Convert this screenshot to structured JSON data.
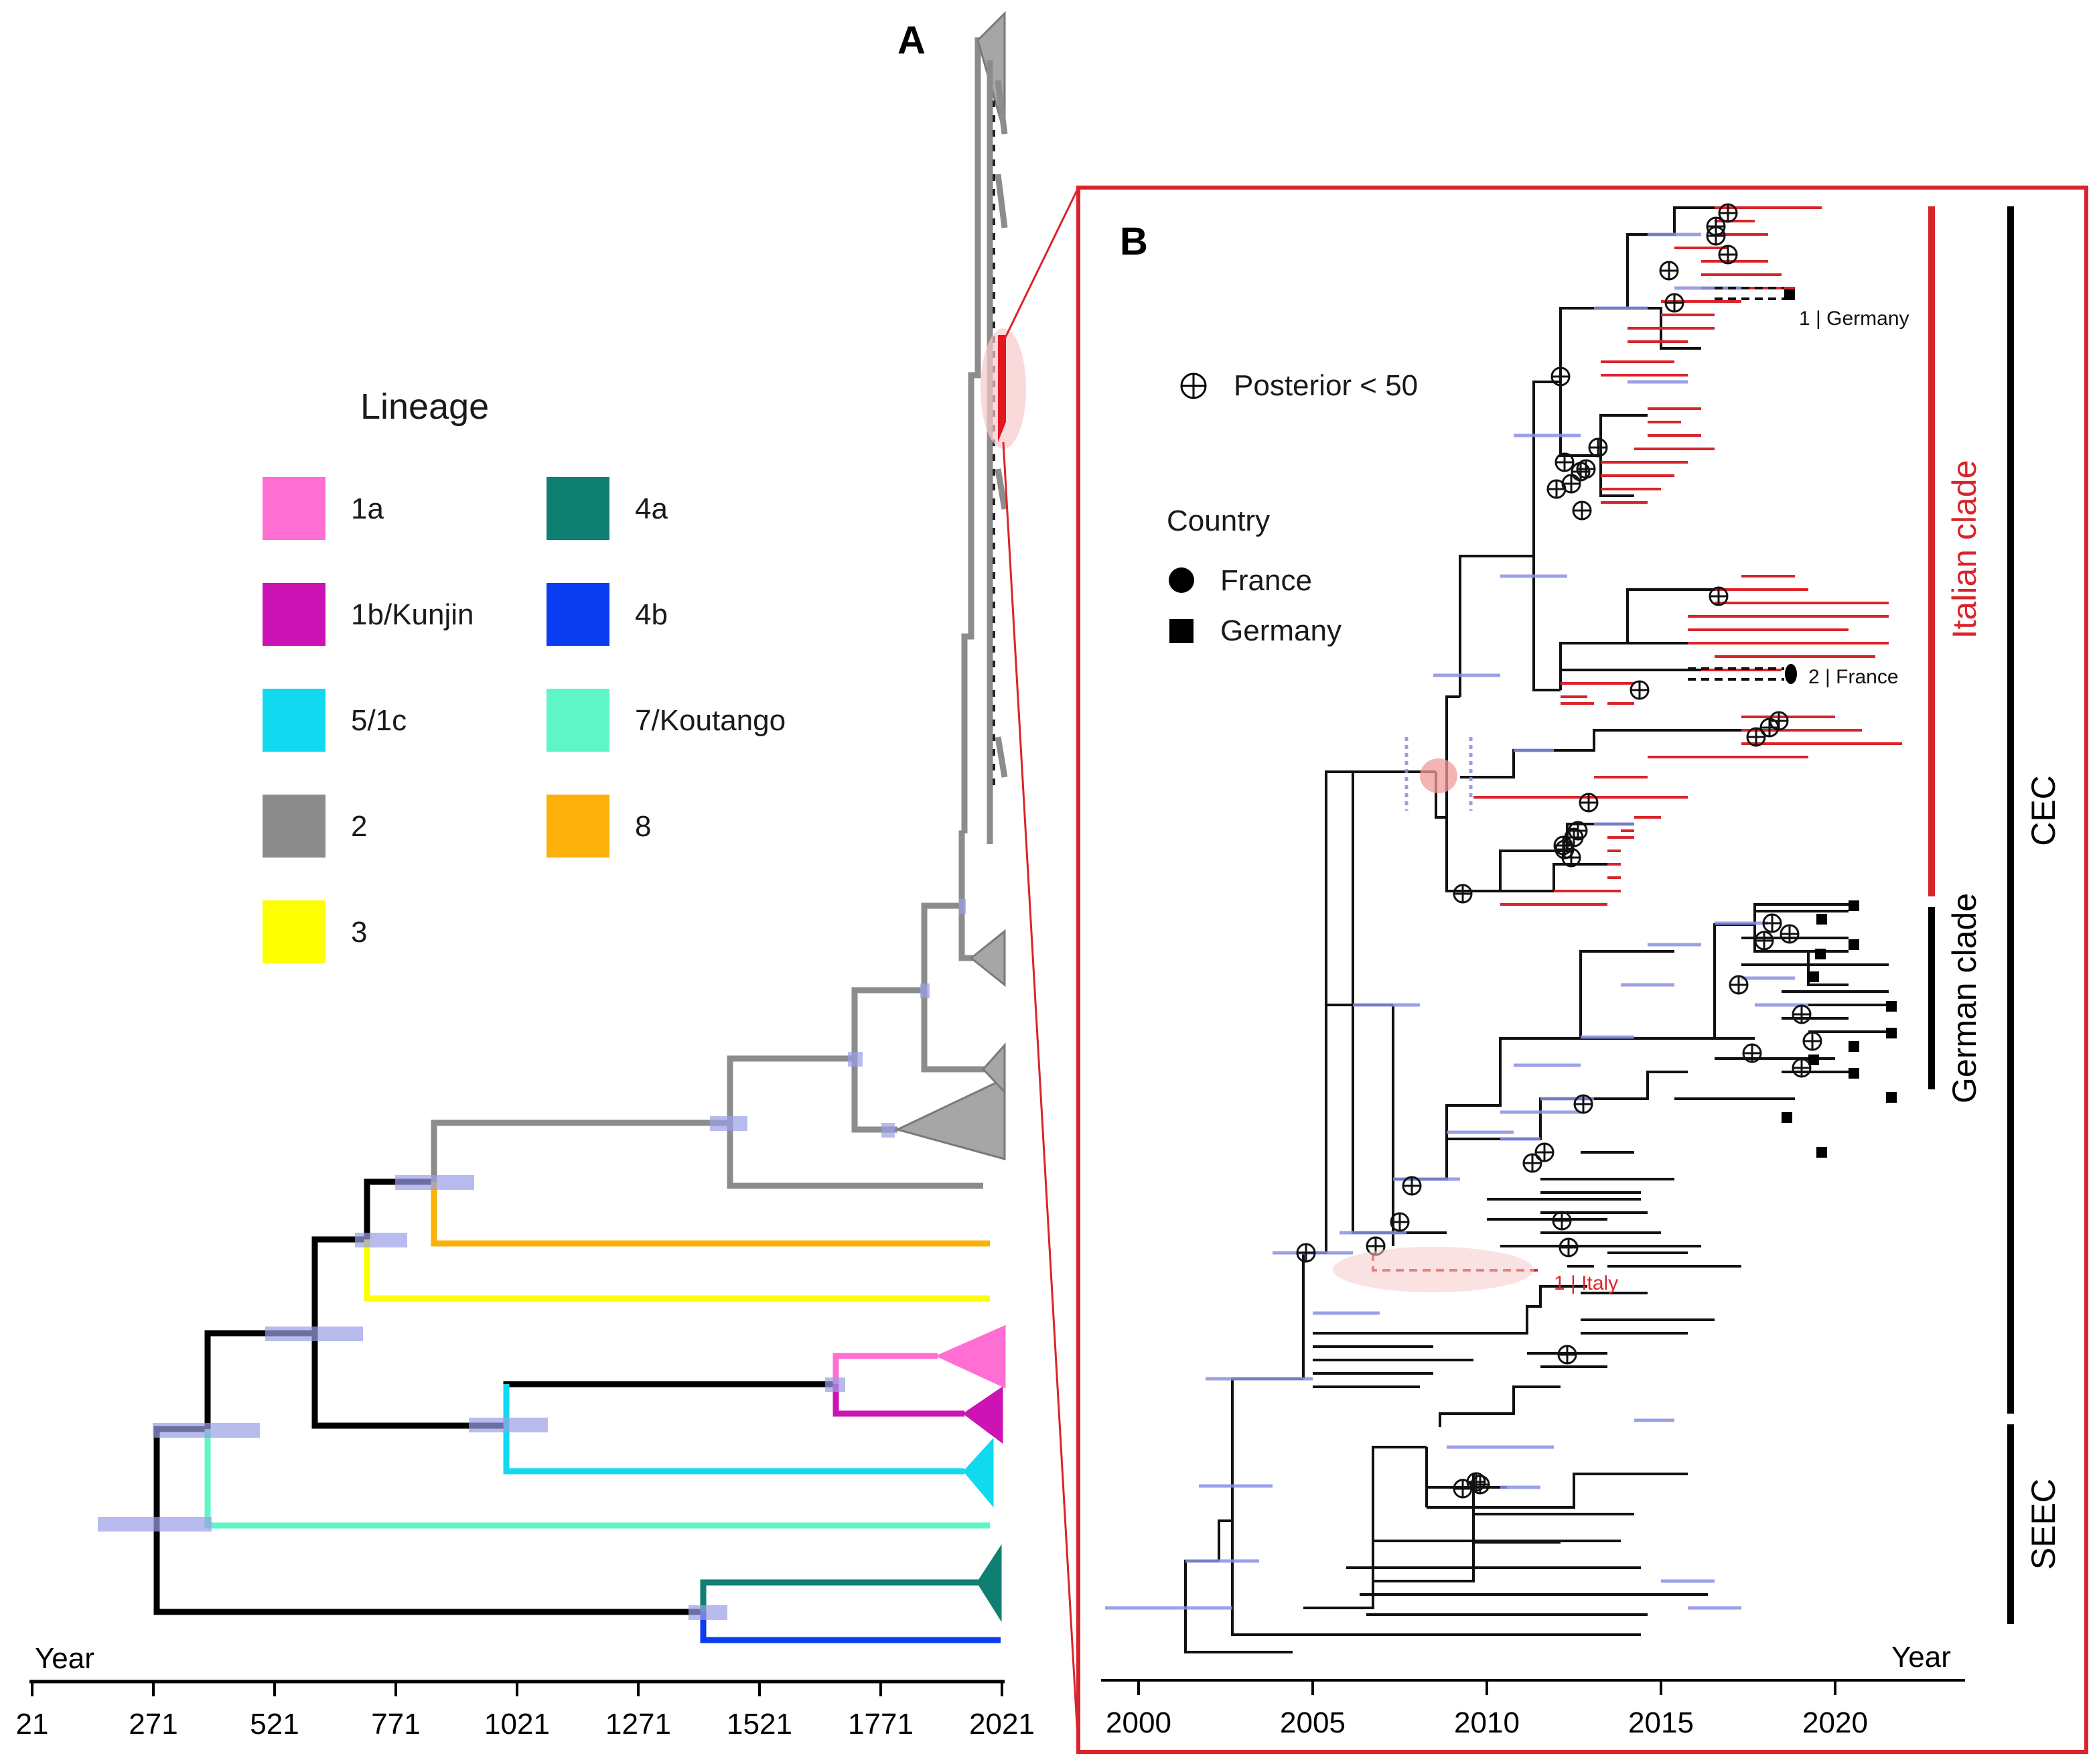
{
  "panel_a": {
    "label": "A",
    "axis_title": "Year",
    "axis_ticks": [
      "21",
      "271",
      "521",
      "771",
      "1021",
      "1271",
      "1521",
      "1771",
      "2021"
    ]
  },
  "legend": {
    "title": "Lineage",
    "items": [
      {
        "label": "1a",
        "color": "#ff6fd3"
      },
      {
        "label": "1b/Kunjin",
        "color": "#cc14b4"
      },
      {
        "label": "5/1c",
        "color": "#10d9f0"
      },
      {
        "label": "2",
        "color": "#8c8c8c"
      },
      {
        "label": "3",
        "color": "#fbff00"
      },
      {
        "label": "4a",
        "color": "#0f7f72"
      },
      {
        "label": "4b",
        "color": "#0a3cf0"
      },
      {
        "label": "7/Koutango",
        "color": "#5ff5c7"
      },
      {
        "label": "8",
        "color": "#fbb10a"
      }
    ]
  },
  "panel_b": {
    "label": "B",
    "axis_title": "Year",
    "axis_ticks": [
      "2000",
      "2005",
      "2010",
      "2015",
      "2020"
    ],
    "posterior_legend": "Posterior < 50",
    "country_legend": {
      "title": "Country",
      "items": [
        {
          "label": "France",
          "icon": "circle-icon"
        },
        {
          "label": "Germany",
          "icon": "square-icon"
        }
      ]
    },
    "annotations": {
      "germany": "1 | Germany",
      "france": "2 | France",
      "italy": "1 | Italy"
    },
    "clades": {
      "italian": "Italian clade",
      "german": "German clade",
      "cec": "CEC",
      "seec": "SEEC"
    }
  },
  "colors": {
    "italian": "#d9242b",
    "lineage2": "#8c8c8c",
    "hpd_bar": "#9a9ee6",
    "border": "#d9242b"
  }
}
